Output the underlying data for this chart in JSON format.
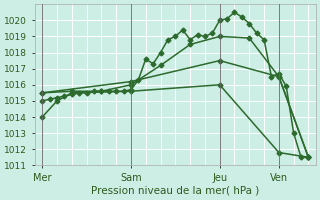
{
  "bg_color": "#cceee4",
  "grid_color": "#ffffff",
  "line_color": "#2d6a2d",
  "xlabel": "Pression niveau de la mer( hPa )",
  "ylim": [
    1011,
    1021
  ],
  "yticks": [
    1011,
    1012,
    1013,
    1014,
    1015,
    1016,
    1017,
    1018,
    1019,
    1020
  ],
  "xtick_labels": [
    "Mer",
    "Sam",
    "Jeu",
    "Ven"
  ],
  "xtick_positions": [
    0,
    24,
    48,
    64
  ],
  "xlim": [
    -2,
    74
  ],
  "vlines": [
    0,
    24,
    48,
    64
  ],
  "series": [
    {
      "x": [
        0,
        2,
        4,
        6,
        8,
        10,
        12,
        14,
        16,
        18,
        20,
        22,
        24,
        26,
        28,
        30,
        32,
        34,
        36,
        38,
        40,
        42,
        44,
        46,
        48,
        50,
        52,
        54,
        56,
        58,
        60,
        62,
        64,
        66,
        68,
        70,
        72
      ],
      "y": [
        1015.0,
        1015.1,
        1015.2,
        1015.3,
        1015.4,
        1015.5,
        1015.5,
        1015.6,
        1015.6,
        1015.6,
        1015.6,
        1015.6,
        1015.7,
        1016.3,
        1017.6,
        1017.3,
        1018.0,
        1018.8,
        1019.0,
        1019.4,
        1018.8,
        1019.1,
        1019.0,
        1019.2,
        1020.0,
        1020.1,
        1020.5,
        1020.2,
        1019.8,
        1019.2,
        1018.8,
        1016.5,
        1016.7,
        1015.9,
        1013.0,
        1011.5,
        1011.5
      ]
    },
    {
      "x": [
        0,
        8,
        16,
        24,
        32,
        40,
        48,
        56,
        64,
        72
      ],
      "y": [
        1015.5,
        1015.6,
        1015.6,
        1016.0,
        1017.2,
        1018.5,
        1019.0,
        1018.9,
        1016.5,
        1011.5
      ]
    },
    {
      "x": [
        0,
        24,
        48,
        64,
        72
      ],
      "y": [
        1015.5,
        1016.2,
        1017.5,
        1016.5,
        1011.5
      ]
    },
    {
      "x": [
        0,
        4,
        8,
        24,
        48,
        64,
        72
      ],
      "y": [
        1014.0,
        1015.0,
        1015.5,
        1015.6,
        1016.0,
        1011.8,
        1011.5
      ]
    }
  ],
  "marker": "D",
  "markersize": 2.5,
  "linewidth": 1.1
}
